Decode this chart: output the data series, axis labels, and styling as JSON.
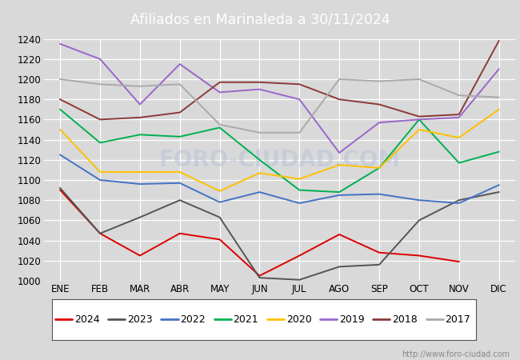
{
  "title": "Afiliados en Marinaleda a 30/11/2024",
  "header_bg": "#4d7ebf",
  "ylim": [
    1000,
    1240
  ],
  "yticks": [
    1000,
    1020,
    1040,
    1060,
    1080,
    1100,
    1120,
    1140,
    1160,
    1180,
    1200,
    1220,
    1240
  ],
  "months": [
    "ENE",
    "FEB",
    "MAR",
    "ABR",
    "MAY",
    "JUN",
    "JUL",
    "AGO",
    "SEP",
    "OCT",
    "NOV",
    "DIC"
  ],
  "watermark": "FORO-CIUDAD.COM",
  "url": "http://www.foro-ciudad.com",
  "series": {
    "2024": {
      "color": "#dd0000",
      "data": [
        1090,
        1047,
        1025,
        1047,
        1041,
        1005,
        1025,
        1046,
        1028,
        1025,
        1019,
        null
      ]
    },
    "2023": {
      "color": "#555555",
      "data": [
        1092,
        1047,
        1063,
        1080,
        1063,
        1003,
        1001,
        1014,
        1016,
        1060,
        1080,
        1088
      ]
    },
    "2022": {
      "color": "#4472c4",
      "data": [
        1125,
        1100,
        1096,
        1097,
        1078,
        1088,
        1077,
        1085,
        1086,
        1080,
        1077,
        1095
      ]
    },
    "2021": {
      "color": "#00b050",
      "data": [
        1170,
        1137,
        1145,
        1143,
        1152,
        1120,
        1090,
        1088,
        1112,
        1160,
        1117,
        1128
      ]
    },
    "2020": {
      "color": "#ffc000",
      "data": [
        1150,
        1108,
        1108,
        1108,
        1089,
        1107,
        1101,
        1115,
        1112,
        1150,
        1142,
        1170
      ]
    },
    "2019": {
      "color": "#9966cc",
      "data": [
        1235,
        1220,
        1175,
        1215,
        1187,
        1190,
        1180,
        1127,
        1157,
        1160,
        1162,
        1210
      ]
    },
    "2018": {
      "color": "#8b3a3a",
      "data": [
        1180,
        1160,
        1162,
        1167,
        1197,
        1197,
        1195,
        1180,
        1175,
        1163,
        1165,
        1238
      ]
    },
    "2017": {
      "color": "#aaaaaa",
      "data": [
        1200,
        1195,
        1193,
        1195,
        1155,
        1147,
        1147,
        1200,
        1198,
        1200,
        1184,
        1182
      ]
    }
  },
  "legend_order": [
    "2024",
    "2023",
    "2022",
    "2021",
    "2020",
    "2019",
    "2018",
    "2017"
  ],
  "bg_color": "#d9d9d9",
  "plot_bg_color": "#d9d9d9",
  "grid_color": "#ffffff",
  "footer_url_color": "#888888"
}
